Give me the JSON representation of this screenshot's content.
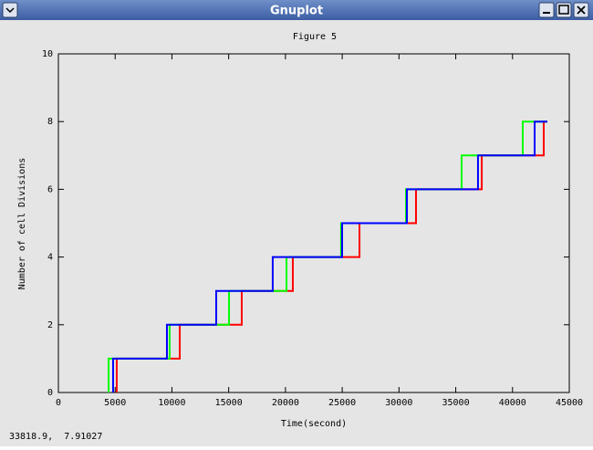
{
  "window": {
    "title": "Gnuplot",
    "status": "33818.9,  7.91027"
  },
  "chart_data": {
    "type": "line",
    "steps": true,
    "title": "Figure 5",
    "x_label": "Time(second)",
    "y_label": "Number of cell Divisions",
    "xlim": [
      0,
      45000
    ],
    "xticks": [
      0,
      5000,
      10000,
      15000,
      20000,
      25000,
      30000,
      35000,
      40000,
      45000
    ],
    "ylim": [
      0,
      10
    ],
    "yticks": [
      0,
      2,
      4,
      6,
      8,
      10
    ],
    "grid": false,
    "series": [
      {
        "color": "#ff0000",
        "x": [
          5140,
          5140,
          10690,
          16150,
          20650,
          26520,
          31500,
          37290,
          42750,
          43070
        ],
        "values": [
          0,
          1,
          2,
          3,
          4,
          5,
          6,
          7,
          8,
          8
        ]
      },
      {
        "color": "#00ff00",
        "x": [
          4420,
          4420,
          9800,
          15030,
          20090,
          24900,
          30620,
          35520,
          40900,
          43000
        ],
        "values": [
          0,
          1,
          2,
          3,
          4,
          5,
          6,
          7,
          8,
          8
        ]
      },
      {
        "color": "#0000ff",
        "x": [
          4820,
          4820,
          9560,
          13900,
          18880,
          24990,
          30700,
          36960,
          41950,
          43070
        ],
        "values": [
          0,
          1,
          2,
          3,
          4,
          5,
          6,
          7,
          8,
          8
        ]
      }
    ]
  }
}
